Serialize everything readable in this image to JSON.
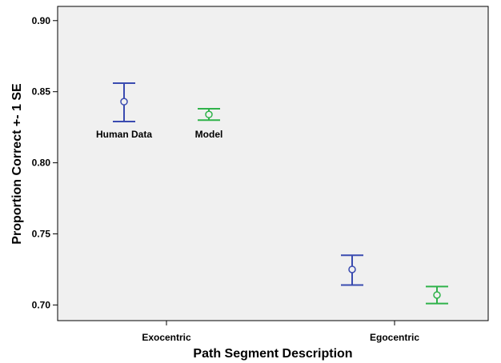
{
  "colors": {
    "background": "#ffffff",
    "plot_background": "#f0f0f0",
    "human": "#3a4bb0",
    "model": "#2fb24a",
    "axis": "#000000"
  },
  "chart_data": {
    "type": "scatter",
    "subtype": "errorbar",
    "xlabel": "Path Segment Description",
    "ylabel": "Proportion Correct +- 1 SE",
    "categories": [
      "Exocentric",
      "Egocentric"
    ],
    "ylim": [
      0.689,
      0.91
    ],
    "yticks": [
      0.7,
      0.75,
      0.8,
      0.85,
      0.9
    ],
    "ytick_labels": [
      "0.70",
      "0.75",
      "0.80",
      "0.85",
      "0.90"
    ],
    "grid": false,
    "legend": "none",
    "annotations": [
      "Human Data",
      "Model"
    ],
    "series": [
      {
        "name": "Human Data",
        "color": "#3a4bb0",
        "mean": [
          0.843,
          0.725
        ],
        "lower": [
          0.829,
          0.714
        ],
        "upper": [
          0.856,
          0.735
        ]
      },
      {
        "name": "Model",
        "color": "#2fb24a",
        "mean": [
          0.834,
          0.707
        ],
        "lower": [
          0.83,
          0.701
        ],
        "upper": [
          0.838,
          0.713
        ]
      }
    ]
  }
}
